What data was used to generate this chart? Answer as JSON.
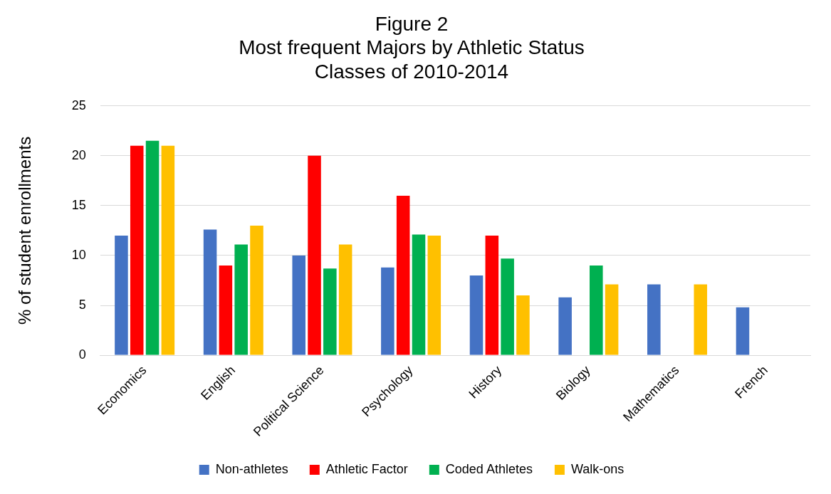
{
  "chart_data": {
    "type": "bar",
    "title": "Figure 2",
    "subtitle": "Most frequent Majors by Athletic Status\nClasses of 2010-2014",
    "ylabel": "% of student enrollments",
    "categories": [
      "Economics",
      "English",
      "Political Science",
      "Psychology",
      "History",
      "Biology",
      "Mathematics",
      "French"
    ],
    "series": [
      {
        "name": "Non-athletes",
        "color": "#4472c4",
        "values": [
          12,
          12.6,
          10,
          8.8,
          8,
          5.8,
          7.1,
          4.8
        ]
      },
      {
        "name": "Athletic Factor",
        "color": "#ff0000",
        "values": [
          21,
          9,
          20,
          16,
          12,
          null,
          null,
          null
        ]
      },
      {
        "name": "Coded Athletes",
        "color": "#00b050",
        "values": [
          21.5,
          11.1,
          8.7,
          12.1,
          9.7,
          9,
          null,
          null
        ]
      },
      {
        "name": "Walk-ons",
        "color": "#ffc000",
        "values": [
          21,
          13,
          11.1,
          12,
          6,
          7.1,
          7.1,
          null
        ]
      }
    ],
    "ylim": [
      0,
      25
    ],
    "yticks": [
      0,
      5,
      10,
      15,
      20,
      25
    ],
    "grid": "y",
    "legend": "bottom"
  }
}
